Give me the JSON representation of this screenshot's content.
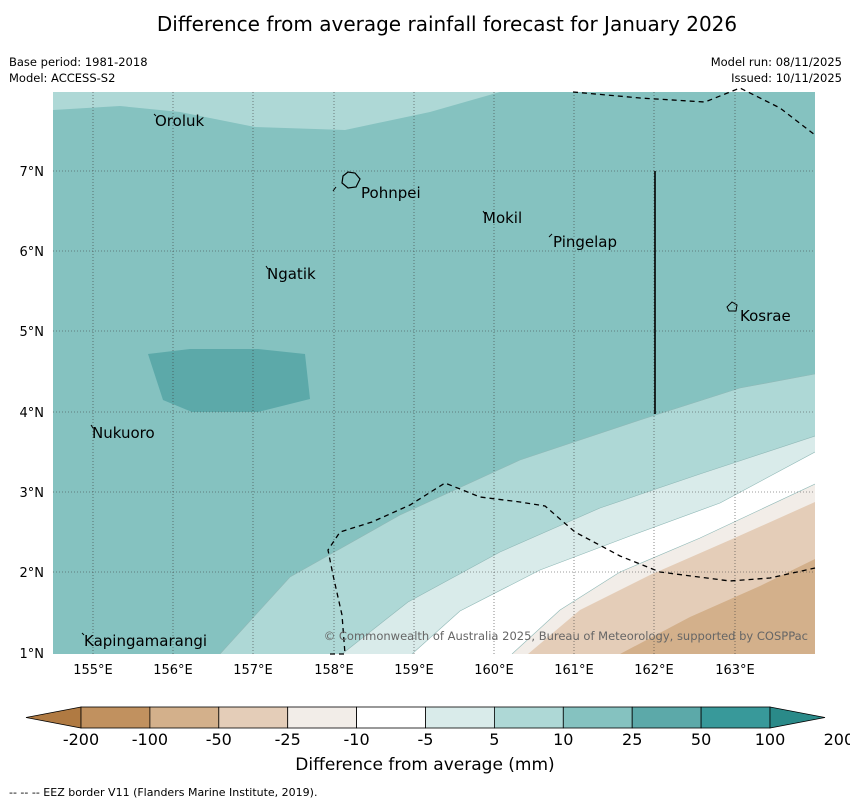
{
  "title": "Difference from average rainfall forecast for January 2026",
  "meta": {
    "base_period": "Base period: 1981-2018",
    "model": "Model: ACCESS-S2",
    "model_run": "Model run: 08/11/2025",
    "issued": "Issued: 10/11/2025"
  },
  "map": {
    "lon_labels": [
      "155°E",
      "156°E",
      "157°E",
      "158°E",
      "159°E",
      "160°E",
      "161°E",
      "162°E",
      "163°E"
    ],
    "lat_labels": [
      "7°N",
      "6°N",
      "5°N",
      "4°N",
      "3°N",
      "2°N",
      "1°N"
    ],
    "places": [
      "Oroluk",
      "Pohnpei",
      "Mokil",
      "Pingelap",
      "Ngatik",
      "Kosrae",
      "Nukuoro",
      "Kapingamarangi"
    ],
    "copyright": "© Commonwealth of Australia 2025, Bureau of Meteorology, supported by COSPPac"
  },
  "legend": {
    "title": "Difference from average (mm)",
    "ticks": [
      "-200",
      "-100",
      "-50",
      "-25",
      "-10",
      "-5",
      "5",
      "10",
      "25",
      "50",
      "100",
      "200"
    ],
    "colors": [
      "#b07a42",
      "#c1915f",
      "#d3b08b",
      "#e4cdb8",
      "#f2ede8",
      "#ffffff",
      "#d9ebea",
      "#aed8d6",
      "#85c2c0",
      "#5ca9a9",
      "#38999a",
      "#2a8a89"
    ]
  },
  "footer": "--  --  -- EEZ border V11 (Flanders Marine Institute, 2019)."
}
